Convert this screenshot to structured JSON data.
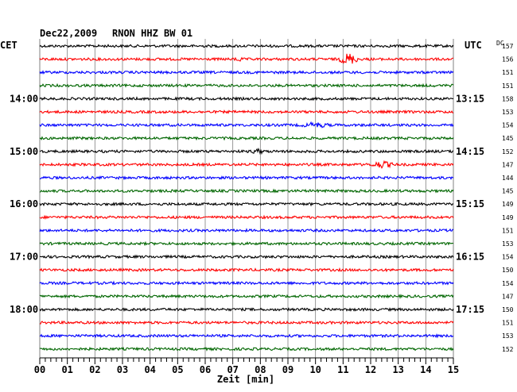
{
  "header": {
    "date": "Dec22,2009",
    "station": "RNON HHZ BW 01",
    "left_zone": "CET",
    "right_zone": "UTC",
    "dc_label": "DC"
  },
  "xaxis": {
    "label": "Zeit [min]",
    "ticks": [
      "00",
      "01",
      "02",
      "03",
      "04",
      "05",
      "06",
      "07",
      "08",
      "09",
      "10",
      "11",
      "12",
      "13",
      "14",
      "15"
    ]
  },
  "colors": {
    "cycle": [
      "#000000",
      "#ff0000",
      "#0000ff",
      "#006600"
    ],
    "grid": "#000000"
  },
  "chart_data": {
    "type": "line",
    "title": "Dec22,2009 RNON HHZ BW 01",
    "xlabel": "Zeit [min]",
    "xlim": [
      0,
      15
    ],
    "trace_interval_min": 15,
    "trace_count": 24,
    "hour_labels_cet": [
      {
        "trace": 4,
        "text": "14:00"
      },
      {
        "trace": 8,
        "text": "15:00"
      },
      {
        "trace": 12,
        "text": "16:00"
      },
      {
        "trace": 16,
        "text": "17:00"
      },
      {
        "trace": 20,
        "text": "18:00"
      }
    ],
    "hour_labels_utc": [
      {
        "trace": 4,
        "text": "13:15"
      },
      {
        "trace": 8,
        "text": "14:15"
      },
      {
        "trace": 12,
        "text": "15:15"
      },
      {
        "trace": 16,
        "text": "16:15"
      },
      {
        "trace": 20,
        "text": "17:15"
      }
    ],
    "dc_offsets": [
      "157",
      "156",
      "151",
      "151",
      "158",
      "153",
      "154",
      "145",
      "152",
      "147",
      "144",
      "145",
      "149",
      "149",
      "151",
      "153",
      "154",
      "150",
      "154",
      "147",
      "150",
      "151",
      "153",
      "152"
    ],
    "events": [
      {
        "trace": 1,
        "minute": 7.2,
        "amplitude": 1.8,
        "duration": 0.15
      },
      {
        "trace": 1,
        "minute": 11.2,
        "amplitude": 4.5,
        "duration": 0.4
      },
      {
        "trace": 6,
        "minute": 10.0,
        "amplitude": 1.6,
        "duration": 0.6
      },
      {
        "trace": 8,
        "minute": 7.9,
        "amplitude": 1.3,
        "duration": 0.3
      },
      {
        "trace": 9,
        "minute": 12.4,
        "amplitude": 2.2,
        "duration": 0.5
      }
    ]
  }
}
